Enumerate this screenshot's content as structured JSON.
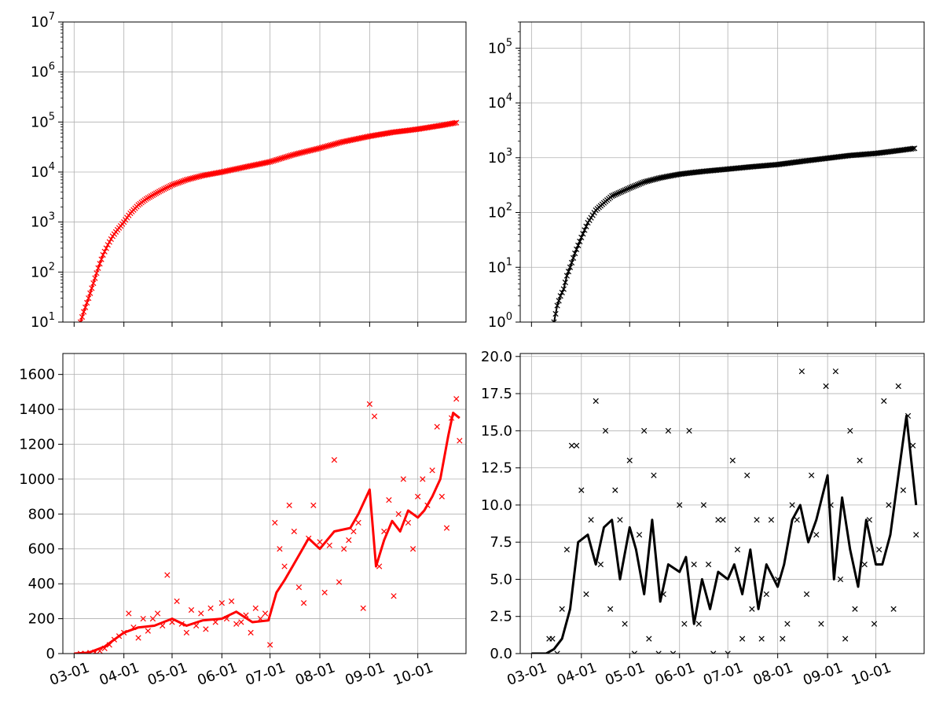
{
  "chart_data": [
    {
      "type": "scatter",
      "panel": "top-left",
      "title": "",
      "xlabel": "",
      "ylabel": "",
      "yscale": "log",
      "ylim": [
        10,
        10000000
      ],
      "yticks": [
        {
          "value": 10,
          "label": "10",
          "exp": "1"
        },
        {
          "value": 100,
          "label": "10",
          "exp": "2"
        },
        {
          "value": 1000,
          "label": "10",
          "exp": "3"
        },
        {
          "value": 10000,
          "label": "10",
          "exp": "4"
        },
        {
          "value": 100000,
          "label": "10",
          "exp": "5"
        },
        {
          "value": 1000000,
          "label": "10",
          "exp": "6"
        },
        {
          "value": 10000000,
          "label": "10",
          "exp": "7"
        }
      ],
      "xlim": [
        "2020-02-23",
        "2020-10-31"
      ],
      "xticks": [],
      "grid": true,
      "color": "#ff0000",
      "marker": "x",
      "series": [
        {
          "x": [
            "2020-03-05",
            "2020-03-07",
            "2020-03-10",
            "2020-03-13",
            "2020-03-16",
            "2020-03-19",
            "2020-03-22",
            "2020-03-25",
            "2020-03-28",
            "2020-04-01",
            "2020-04-05",
            "2020-04-10",
            "2020-04-15",
            "2020-04-20",
            "2020-04-25",
            "2020-05-01",
            "2020-05-10",
            "2020-05-20",
            "2020-06-01",
            "2020-06-15",
            "2020-07-01",
            "2020-07-15",
            "2020-08-01",
            "2020-08-15",
            "2020-09-01",
            "2020-09-15",
            "2020-10-01",
            "2020-10-15",
            "2020-10-25"
          ],
          "y": [
            10,
            16,
            30,
            60,
            120,
            220,
            350,
            520,
            700,
            1000,
            1500,
            2200,
            2900,
            3600,
            4400,
            5500,
            7000,
            8500,
            10000,
            12500,
            16000,
            22000,
            30000,
            40000,
            52000,
            62000,
            72000,
            85000,
            97000
          ]
        }
      ]
    },
    {
      "type": "scatter",
      "panel": "top-right",
      "title": "",
      "xlabel": "",
      "ylabel": "",
      "yscale": "log",
      "ylim": [
        1,
        300000
      ],
      "yticks": [
        {
          "value": 1,
          "label": "10",
          "exp": "0"
        },
        {
          "value": 10,
          "label": "10",
          "exp": "1"
        },
        {
          "value": 100,
          "label": "10",
          "exp": "2"
        },
        {
          "value": 1000,
          "label": "10",
          "exp": "3"
        },
        {
          "value": 10000,
          "label": "10",
          "exp": "4"
        },
        {
          "value": 100000,
          "label": "10",
          "exp": "5"
        }
      ],
      "xlim": [
        "2020-02-23",
        "2020-10-31"
      ],
      "xticks": [],
      "grid": true,
      "color": "#000000",
      "marker": "x",
      "series": [
        {
          "x": [
            "2020-03-15",
            "2020-03-17",
            "2020-03-19",
            "2020-03-21",
            "2020-03-23",
            "2020-03-25",
            "2020-03-28",
            "2020-04-01",
            "2020-04-05",
            "2020-04-10",
            "2020-04-15",
            "2020-04-20",
            "2020-05-01",
            "2020-05-10",
            "2020-05-20",
            "2020-06-01",
            "2020-06-15",
            "2020-07-01",
            "2020-07-15",
            "2020-08-01",
            "2020-08-15",
            "2020-09-01",
            "2020-09-15",
            "2020-10-01",
            "2020-10-15",
            "2020-10-25"
          ],
          "y": [
            1,
            2,
            3,
            4,
            7,
            10,
            18,
            35,
            65,
            110,
            150,
            200,
            280,
            360,
            430,
            500,
            560,
            620,
            680,
            750,
            850,
            980,
            1100,
            1200,
            1350,
            1480
          ]
        }
      ]
    },
    {
      "type": "scatter",
      "panel": "bottom-left",
      "title": "",
      "xlabel": "",
      "ylabel": "",
      "yscale": "linear",
      "ylim": [
        0,
        1720
      ],
      "yticks": [
        {
          "value": 0,
          "label": "0"
        },
        {
          "value": 200,
          "label": "200"
        },
        {
          "value": 400,
          "label": "400"
        },
        {
          "value": 600,
          "label": "600"
        },
        {
          "value": 800,
          "label": "800"
        },
        {
          "value": 1000,
          "label": "1000"
        },
        {
          "value": 1200,
          "label": "1200"
        },
        {
          "value": 1400,
          "label": "1400"
        },
        {
          "value": 1600,
          "label": "1600"
        }
      ],
      "xlim": [
        "2020-02-23",
        "2020-10-31"
      ],
      "xticks": [
        "03-01",
        "04-01",
        "05-01",
        "06-01",
        "07-01",
        "08-01",
        "09-01",
        "10-01"
      ],
      "grid": true,
      "color": "#ff0000",
      "marker": "x",
      "series": [
        {
          "name": "",
          "style": "points",
          "x": [
            "2020-03-05",
            "2020-03-08",
            "2020-03-11",
            "2020-03-14",
            "2020-03-17",
            "2020-03-20",
            "2020-03-23",
            "2020-03-26",
            "2020-03-29",
            "2020-04-01",
            "2020-04-04",
            "2020-04-07",
            "2020-04-10",
            "2020-04-13",
            "2020-04-16",
            "2020-04-19",
            "2020-04-22",
            "2020-04-25",
            "2020-04-28",
            "2020-05-01",
            "2020-05-04",
            "2020-05-07",
            "2020-05-10",
            "2020-05-13",
            "2020-05-16",
            "2020-05-19",
            "2020-05-22",
            "2020-05-25",
            "2020-05-28",
            "2020-06-01",
            "2020-06-04",
            "2020-06-07",
            "2020-06-10",
            "2020-06-13",
            "2020-06-16",
            "2020-06-19",
            "2020-06-22",
            "2020-06-25",
            "2020-06-28",
            "2020-07-01",
            "2020-07-04",
            "2020-07-07",
            "2020-07-10",
            "2020-07-13",
            "2020-07-16",
            "2020-07-19",
            "2020-07-22",
            "2020-07-25",
            "2020-07-28",
            "2020-08-01",
            "2020-08-04",
            "2020-08-07",
            "2020-08-10",
            "2020-08-13",
            "2020-08-16",
            "2020-08-19",
            "2020-08-22",
            "2020-08-25",
            "2020-08-28",
            "2020-09-01",
            "2020-09-04",
            "2020-09-07",
            "2020-09-10",
            "2020-09-13",
            "2020-09-16",
            "2020-09-19",
            "2020-09-22",
            "2020-09-25",
            "2020-09-28",
            "2020-10-01",
            "2020-10-04",
            "2020-10-07",
            "2020-10-10",
            "2020-10-13",
            "2020-10-16",
            "2020-10-19",
            "2020-10-22",
            "2020-10-25",
            "2020-10-27"
          ],
          "y": [
            0,
            0,
            5,
            8,
            15,
            30,
            50,
            80,
            100,
            120,
            230,
            150,
            90,
            200,
            130,
            200,
            230,
            160,
            450,
            180,
            300,
            170,
            120,
            250,
            160,
            230,
            140,
            260,
            180,
            290,
            200,
            300,
            170,
            180,
            220,
            120,
            260,
            200,
            230,
            50,
            750,
            600,
            500,
            850,
            700,
            380,
            290,
            660,
            850,
            640,
            350,
            620,
            1110,
            410,
            600,
            650,
            700,
            750,
            260,
            1430,
            1360,
            500,
            700,
            880,
            330,
            800,
            1000,
            750,
            600,
            900,
            1000,
            850,
            1050,
            1300,
            900,
            720,
            1350,
            1460,
            1220
          ]
        },
        {
          "name": "",
          "style": "line",
          "x": [
            "2020-03-01",
            "2020-03-10",
            "2020-03-20",
            "2020-04-01",
            "2020-04-10",
            "2020-04-20",
            "2020-05-01",
            "2020-05-10",
            "2020-05-20",
            "2020-06-01",
            "2020-06-10",
            "2020-06-20",
            "2020-06-30",
            "2020-07-05",
            "2020-07-10",
            "2020-07-15",
            "2020-07-20",
            "2020-07-25",
            "2020-08-01",
            "2020-08-10",
            "2020-08-20",
            "2020-08-25",
            "2020-09-01",
            "2020-09-05",
            "2020-09-10",
            "2020-09-15",
            "2020-09-20",
            "2020-09-25",
            "2020-10-01",
            "2020-10-05",
            "2020-10-10",
            "2020-10-15",
            "2020-10-20",
            "2020-10-23",
            "2020-10-27"
          ],
          "y": [
            0,
            5,
            40,
            120,
            150,
            160,
            200,
            160,
            190,
            200,
            240,
            180,
            190,
            350,
            420,
            500,
            580,
            660,
            600,
            700,
            720,
            800,
            940,
            500,
            650,
            760,
            700,
            820,
            780,
            820,
            900,
            1000,
            1250,
            1380,
            1350
          ]
        }
      ]
    },
    {
      "type": "scatter",
      "panel": "bottom-right",
      "title": "",
      "xlabel": "",
      "ylabel": "",
      "yscale": "linear",
      "ylim": [
        0,
        20.2
      ],
      "yticks": [
        {
          "value": 0,
          "label": "0.0"
        },
        {
          "value": 2.5,
          "label": "2.5"
        },
        {
          "value": 5,
          "label": "5.0"
        },
        {
          "value": 7.5,
          "label": "7.5"
        },
        {
          "value": 10,
          "label": "10.0"
        },
        {
          "value": 12.5,
          "label": "12.5"
        },
        {
          "value": 15,
          "label": "15.0"
        },
        {
          "value": 17.5,
          "label": "17.5"
        },
        {
          "value": 20,
          "label": "20.0"
        }
      ],
      "xlim": [
        "2020-02-23",
        "2020-10-31"
      ],
      "xticks": [
        "03-01",
        "04-01",
        "05-01",
        "06-01",
        "07-01",
        "08-01",
        "09-01",
        "10-01"
      ],
      "grid": true,
      "color": "#000000",
      "marker": "x",
      "series": [
        {
          "name": "",
          "style": "points",
          "x": [
            "2020-03-12",
            "2020-03-14",
            "2020-03-17",
            "2020-03-20",
            "2020-03-23",
            "2020-03-26",
            "2020-03-29",
            "2020-04-01",
            "2020-04-04",
            "2020-04-07",
            "2020-04-10",
            "2020-04-13",
            "2020-04-16",
            "2020-04-19",
            "2020-04-22",
            "2020-04-25",
            "2020-04-28",
            "2020-05-01",
            "2020-05-04",
            "2020-05-07",
            "2020-05-10",
            "2020-05-13",
            "2020-05-16",
            "2020-05-19",
            "2020-05-22",
            "2020-05-25",
            "2020-05-28",
            "2020-06-01",
            "2020-06-04",
            "2020-06-07",
            "2020-06-10",
            "2020-06-13",
            "2020-06-16",
            "2020-06-19",
            "2020-06-22",
            "2020-06-25",
            "2020-06-28",
            "2020-07-01",
            "2020-07-04",
            "2020-07-07",
            "2020-07-10",
            "2020-07-13",
            "2020-07-16",
            "2020-07-19",
            "2020-07-22",
            "2020-07-25",
            "2020-07-28",
            "2020-08-01",
            "2020-08-04",
            "2020-08-07",
            "2020-08-10",
            "2020-08-13",
            "2020-08-16",
            "2020-08-19",
            "2020-08-22",
            "2020-08-25",
            "2020-08-28",
            "2020-08-31",
            "2020-09-03",
            "2020-09-06",
            "2020-09-09",
            "2020-09-12",
            "2020-09-15",
            "2020-09-18",
            "2020-09-21",
            "2020-09-24",
            "2020-09-27",
            "2020-09-30",
            "2020-10-03",
            "2020-10-06",
            "2020-10-09",
            "2020-10-12",
            "2020-10-15",
            "2020-10-18",
            "2020-10-21",
            "2020-10-24",
            "2020-10-26"
          ],
          "y": [
            1,
            1,
            0,
            3,
            7,
            14,
            14,
            11,
            4,
            9,
            17,
            6,
            15,
            3,
            11,
            9,
            2,
            13,
            0,
            8,
            15,
            1,
            12,
            0,
            4,
            15,
            0,
            10,
            2,
            15,
            6,
            2,
            10,
            6,
            0,
            9,
            9,
            0,
            13,
            7,
            1,
            12,
            3,
            9,
            1,
            4,
            9,
            5,
            1,
            2,
            10,
            9,
            19,
            4,
            12,
            8,
            2,
            18,
            10,
            19,
            5,
            1,
            15,
            3,
            13,
            6,
            9,
            2,
            7,
            17,
            10,
            3,
            18,
            11,
            16,
            14,
            8
          ]
        },
        {
          "name": "",
          "style": "line",
          "x": [
            "2020-03-01",
            "2020-03-10",
            "2020-03-15",
            "2020-03-20",
            "2020-03-25",
            "2020-03-30",
            "2020-04-05",
            "2020-04-10",
            "2020-04-15",
            "2020-04-20",
            "2020-04-25",
            "2020-05-01",
            "2020-05-05",
            "2020-05-10",
            "2020-05-15",
            "2020-05-20",
            "2020-05-25",
            "2020-06-01",
            "2020-06-05",
            "2020-06-10",
            "2020-06-15",
            "2020-06-20",
            "2020-06-25",
            "2020-07-01",
            "2020-07-05",
            "2020-07-10",
            "2020-07-15",
            "2020-07-20",
            "2020-07-25",
            "2020-08-01",
            "2020-08-05",
            "2020-08-10",
            "2020-08-15",
            "2020-08-20",
            "2020-08-25",
            "2020-09-01",
            "2020-09-05",
            "2020-09-10",
            "2020-09-15",
            "2020-09-20",
            "2020-09-25",
            "2020-10-01",
            "2020-10-05",
            "2020-10-10",
            "2020-10-15",
            "2020-10-20",
            "2020-10-23",
            "2020-10-26"
          ],
          "y": [
            0,
            0,
            0.3,
            1,
            3,
            7.5,
            8,
            6,
            8.5,
            9,
            5,
            8.5,
            7,
            4,
            9,
            3.5,
            6,
            5.5,
            6.5,
            2,
            5,
            3,
            5.5,
            5,
            6,
            4,
            7,
            3,
            6,
            4.5,
            6,
            9,
            10,
            7.5,
            9,
            12,
            5,
            10.5,
            7,
            4.5,
            9,
            6,
            6,
            8,
            12,
            16,
            13,
            10
          ]
        }
      ]
    }
  ]
}
